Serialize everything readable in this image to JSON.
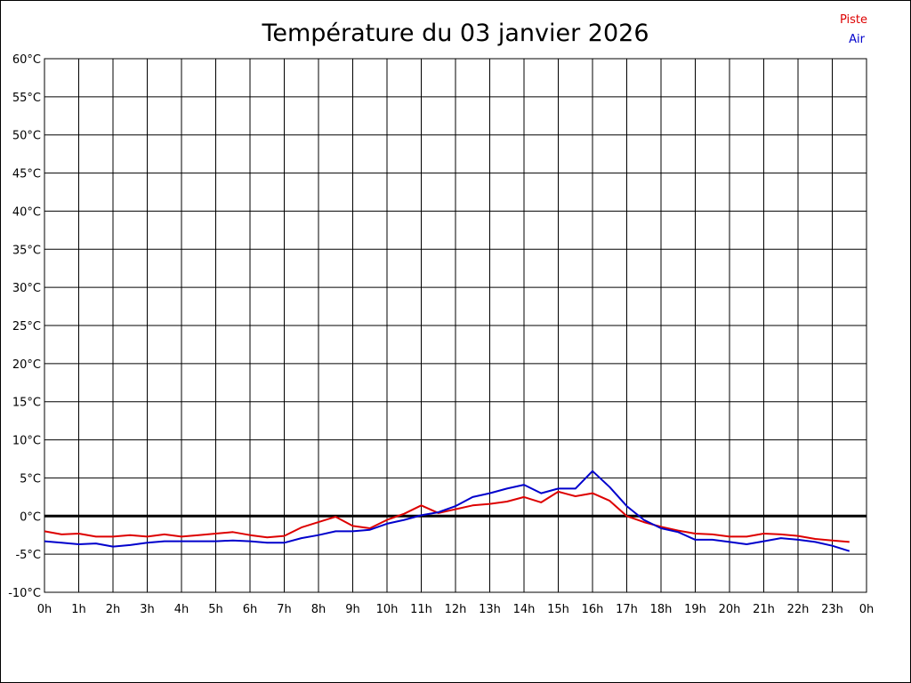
{
  "chart_data": {
    "type": "line",
    "title": "Température du 03 janvier 2026",
    "xlabel": "",
    "ylabel": "",
    "ylim": [
      -10,
      60
    ],
    "y_ticks": [
      {
        "v": 60,
        "label": "60°C"
      },
      {
        "v": 55,
        "label": "55°C"
      },
      {
        "v": 50,
        "label": "50°C"
      },
      {
        "v": 45,
        "label": "45°C"
      },
      {
        "v": 40,
        "label": "40°C"
      },
      {
        "v": 35,
        "label": "35°C"
      },
      {
        "v": 30,
        "label": "30°C"
      },
      {
        "v": 25,
        "label": "25°C"
      },
      {
        "v": 20,
        "label": "20°C"
      },
      {
        "v": 15,
        "label": "15°C"
      },
      {
        "v": 10,
        "label": "10°C"
      },
      {
        "v": 5,
        "label": "5°C"
      },
      {
        "v": 0,
        "label": "0°C"
      },
      {
        "v": -5,
        "label": "-5°C"
      },
      {
        "v": -10,
        "label": "-10°C"
      }
    ],
    "x_ticks": [
      "0h",
      "1h",
      "2h",
      "3h",
      "4h",
      "5h",
      "6h",
      "7h",
      "8h",
      "9h",
      "10h",
      "11h",
      "12h",
      "13h",
      "14h",
      "15h",
      "16h",
      "17h",
      "18h",
      "19h",
      "20h",
      "21h",
      "22h",
      "23h",
      "0h"
    ],
    "grid": true,
    "zero_line": true,
    "legend_position": "top-right",
    "x": [
      0,
      0.5,
      1,
      1.5,
      2,
      2.5,
      3,
      3.5,
      4,
      4.5,
      5,
      5.5,
      6,
      6.5,
      7,
      7.5,
      8,
      8.5,
      9,
      9.5,
      10,
      10.5,
      11,
      11.5,
      12,
      12.5,
      13,
      13.5,
      14,
      14.5,
      15,
      15.5,
      16,
      16.5,
      17,
      17.5,
      18,
      18.5,
      19,
      19.5,
      20,
      20.5,
      21,
      21.5,
      22,
      22.5,
      23,
      23.5
    ],
    "series": [
      {
        "name": "Piste",
        "color": "#dd0000",
        "values": [
          -2.0,
          -2.4,
          -2.3,
          -2.7,
          -2.7,
          -2.5,
          -2.7,
          -2.4,
          -2.7,
          -2.5,
          -2.3,
          -2.1,
          -2.5,
          -2.8,
          -2.6,
          -1.5,
          -0.8,
          -0.1,
          -1.3,
          -1.6,
          -0.5,
          0.3,
          1.4,
          0.4,
          0.9,
          1.4,
          1.6,
          1.9,
          2.5,
          1.8,
          3.2,
          2.6,
          3.0,
          2.0,
          0.0,
          -0.8,
          -1.4,
          -1.9,
          -2.3,
          -2.4,
          -2.7,
          -2.7,
          -2.3,
          -2.4,
          -2.6,
          -3.0,
          -3.2,
          -3.4
        ]
      },
      {
        "name": "Air",
        "color": "#0000cc",
        "values": [
          -3.3,
          -3.5,
          -3.7,
          -3.6,
          -4.0,
          -3.8,
          -3.5,
          -3.3,
          -3.3,
          -3.3,
          -3.3,
          -3.2,
          -3.3,
          -3.5,
          -3.5,
          -2.9,
          -2.5,
          -2.0,
          -2.0,
          -1.8,
          -1.0,
          -0.5,
          0.1,
          0.5,
          1.3,
          2.5,
          3.0,
          3.6,
          4.1,
          3.0,
          3.6,
          3.6,
          5.9,
          3.8,
          1.3,
          -0.5,
          -1.6,
          -2.1,
          -3.1,
          -3.1,
          -3.4,
          -3.7,
          -3.3,
          -2.9,
          -3.1,
          -3.4,
          -3.9,
          -4.6
        ]
      }
    ]
  }
}
